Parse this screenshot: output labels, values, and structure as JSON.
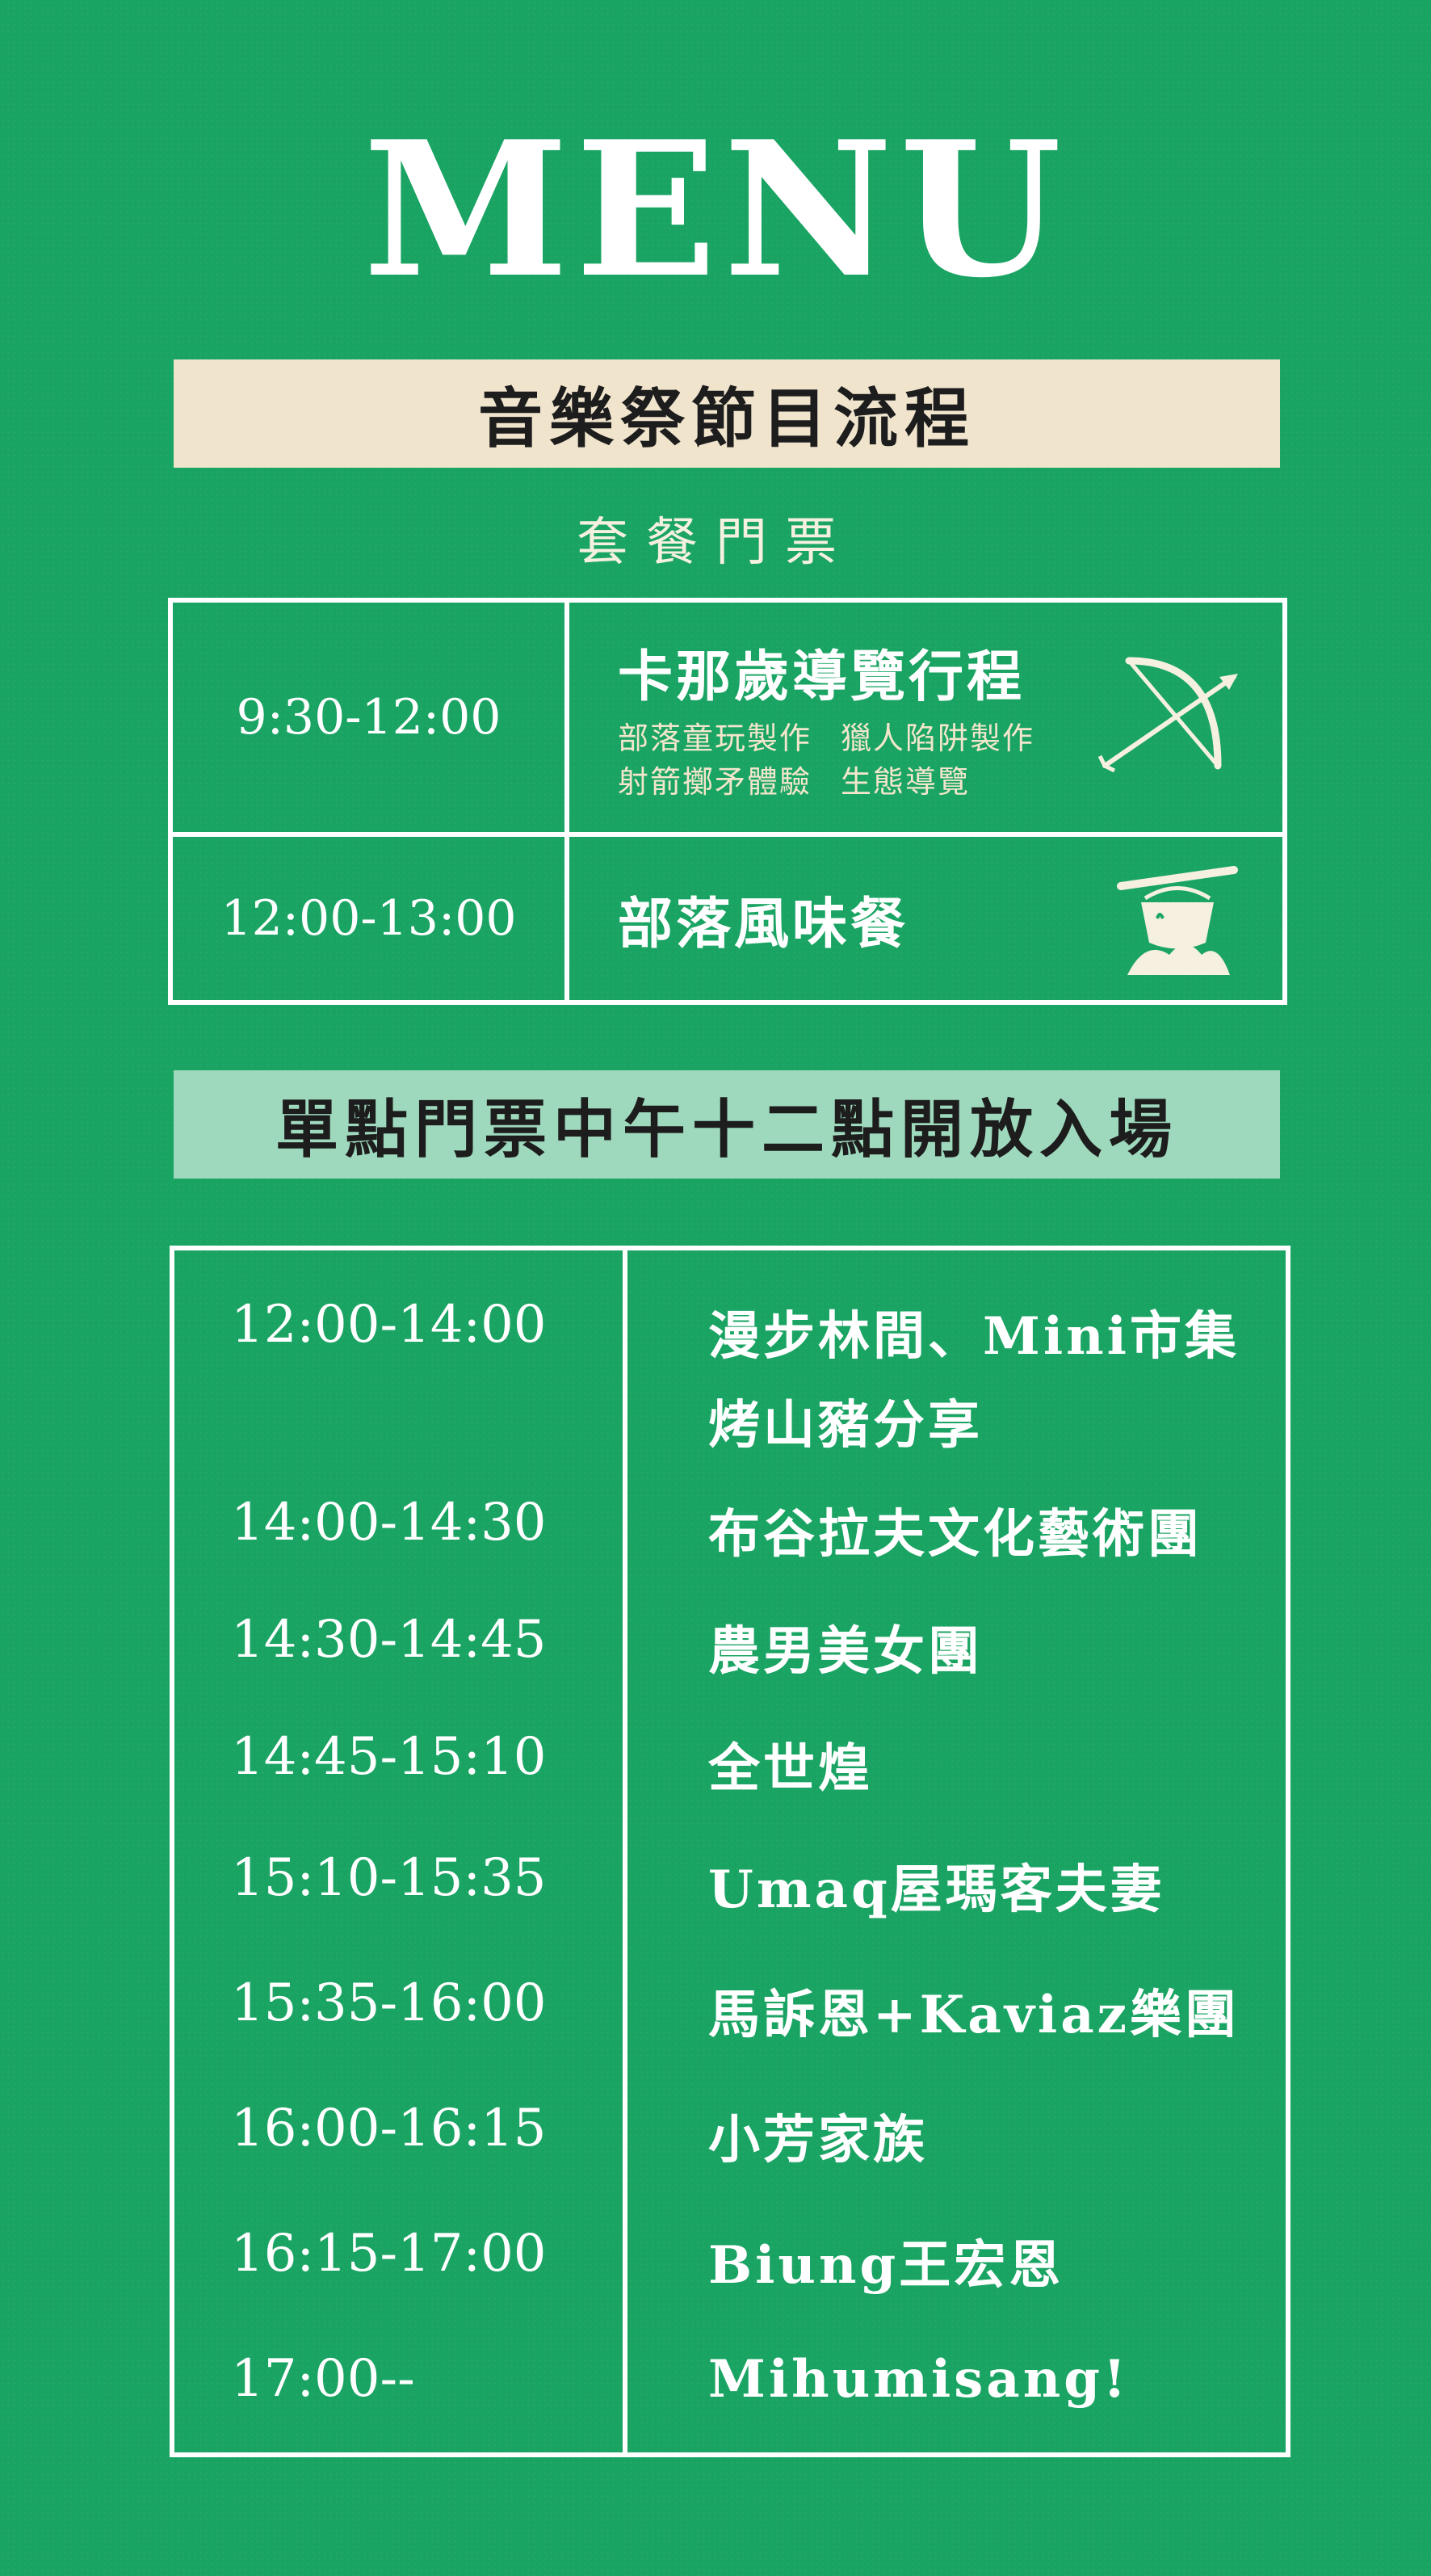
{
  "title": "MENU",
  "banner1": "音樂祭節目流程",
  "package_heading": "套餐門票",
  "package": [
    {
      "time": "9:30-12:00",
      "activity": "卡那歲導覽行程",
      "details": [
        "部落童玩製作",
        "獵人陷阱製作",
        "射箭擲矛體驗",
        "生態導覽"
      ],
      "icon": "bow-arrow-icon"
    },
    {
      "time": "12:00-13:00",
      "activity": "部落風味餐",
      "icon": "cooking-pot-icon"
    }
  ],
  "banner2": "單點門票中午十二點開放入場",
  "schedule": [
    {
      "time": "12:00-14:00",
      "act_line1": "漫步林間、Mini市集",
      "act_line2": "烤山豬分享"
    },
    {
      "time": "14:00-14:30",
      "act_line1": "布谷拉夫文化藝術團"
    },
    {
      "time": "14:30-14:45",
      "act_line1": "農男美女團"
    },
    {
      "time": "14:45-15:10",
      "act_line1": "全世煌"
    },
    {
      "time": "15:10-15:35",
      "act_line1": "Umaq屋瑪客夫妻"
    },
    {
      "time": "15:35-16:00",
      "act_line1": "馬訴恩+Kaviaz樂團"
    },
    {
      "time": "16:00-16:15",
      "act_line1": "小芳家族"
    },
    {
      "time": "16:15-17:00",
      "act_line1": "Biung王宏恩"
    },
    {
      "time": "17:00--",
      "act_line1": "Mihumisang!"
    }
  ],
  "colors": {
    "background": "#1aa463",
    "banner1_bg": "#f0e4cd",
    "banner2_bg": "#9ed9bd",
    "detail_text": "#f3e6cc",
    "text": "#ffffff"
  }
}
